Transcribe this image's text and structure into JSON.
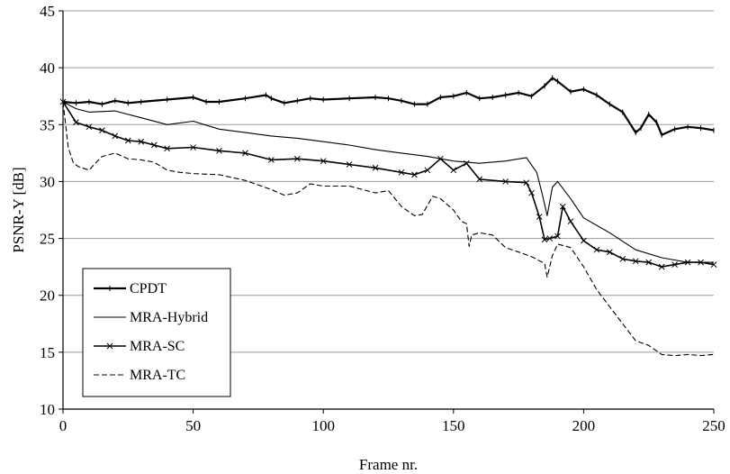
{
  "chart_data": {
    "type": "line",
    "title": "",
    "xlabel": "Frame nr.",
    "ylabel": "PSNR-Y [dB]",
    "xlim": [
      0,
      250
    ],
    "ylim": [
      10,
      45
    ],
    "xticks": [
      0,
      50,
      100,
      150,
      200,
      250
    ],
    "yticks": [
      10,
      15,
      20,
      25,
      30,
      35,
      40,
      45
    ],
    "grid": "horizontal",
    "legend_position": "bottom-left",
    "series": [
      {
        "name": "CPDT",
        "style": "solid-plus",
        "x": [
          0,
          5,
          10,
          15,
          20,
          25,
          30,
          40,
          50,
          55,
          60,
          70,
          78,
          80,
          85,
          90,
          95,
          100,
          110,
          120,
          125,
          130,
          135,
          140,
          145,
          150,
          155,
          160,
          165,
          170,
          175,
          180,
          185,
          188,
          190,
          195,
          200,
          205,
          210,
          215,
          220,
          222,
          225,
          228,
          230,
          235,
          240,
          245,
          250
        ],
        "y": [
          37.0,
          36.9,
          37.0,
          36.8,
          37.1,
          36.9,
          37.0,
          37.2,
          37.4,
          37.0,
          37.0,
          37.3,
          37.6,
          37.3,
          36.9,
          37.1,
          37.3,
          37.2,
          37.3,
          37.4,
          37.3,
          37.1,
          36.8,
          36.8,
          37.4,
          37.5,
          37.8,
          37.3,
          37.4,
          37.6,
          37.8,
          37.5,
          38.4,
          39.1,
          38.8,
          37.9,
          38.1,
          37.6,
          36.8,
          36.1,
          34.3,
          34.7,
          35.9,
          35.2,
          34.1,
          34.6,
          34.8,
          34.7,
          34.5
        ]
      },
      {
        "name": "MRA-Hybrid",
        "style": "solid",
        "x": [
          0,
          5,
          10,
          20,
          30,
          40,
          50,
          60,
          70,
          80,
          90,
          100,
          110,
          120,
          130,
          140,
          150,
          160,
          170,
          178,
          182,
          184,
          186,
          188,
          190,
          195,
          200,
          210,
          220,
          230,
          240,
          250
        ],
        "y": [
          37.0,
          36.4,
          36.1,
          36.2,
          35.6,
          35.0,
          35.3,
          34.6,
          34.3,
          34.0,
          33.8,
          33.5,
          33.2,
          32.8,
          32.5,
          32.2,
          31.8,
          31.6,
          31.8,
          32.1,
          30.8,
          29.0,
          27.0,
          29.5,
          30.0,
          28.5,
          26.8,
          25.5,
          24.0,
          23.3,
          22.9,
          22.9
        ]
      },
      {
        "name": "MRA-SC",
        "style": "solid-x",
        "x": [
          0,
          5,
          10,
          15,
          20,
          25,
          30,
          35,
          40,
          50,
          60,
          70,
          80,
          90,
          100,
          110,
          120,
          130,
          135,
          140,
          145,
          150,
          155,
          160,
          170,
          178,
          180,
          183,
          185,
          187,
          190,
          192,
          195,
          200,
          205,
          210,
          215,
          220,
          225,
          230,
          235,
          240,
          245,
          250
        ],
        "y": [
          37.0,
          35.2,
          34.8,
          34.5,
          34.0,
          33.6,
          33.5,
          33.2,
          32.9,
          33.0,
          32.7,
          32.5,
          31.9,
          32.0,
          31.8,
          31.5,
          31.2,
          30.8,
          30.6,
          31.0,
          32.0,
          31.0,
          31.6,
          30.2,
          30.0,
          29.9,
          29.0,
          26.9,
          24.9,
          25.0,
          25.2,
          27.8,
          26.5,
          24.8,
          24.0,
          23.8,
          23.2,
          23.0,
          22.9,
          22.5,
          22.7,
          22.9,
          22.9,
          22.7
        ]
      },
      {
        "name": "MRA-TC",
        "style": "dashed",
        "x": [
          0,
          2,
          4,
          6,
          10,
          12,
          15,
          20,
          25,
          30,
          35,
          40,
          45,
          50,
          60,
          70,
          80,
          85,
          90,
          95,
          100,
          110,
          120,
          125,
          130,
          135,
          138,
          142,
          145,
          150,
          153,
          155,
          156,
          157,
          160,
          165,
          170,
          175,
          180,
          185,
          186,
          188,
          190,
          195,
          200,
          205,
          210,
          215,
          220,
          225,
          230,
          235,
          240,
          245,
          250
        ],
        "y": [
          37.0,
          33.0,
          31.6,
          31.3,
          31.0,
          31.5,
          32.2,
          32.5,
          32.0,
          31.9,
          31.7,
          31.0,
          30.8,
          30.7,
          30.6,
          30.1,
          29.3,
          28.8,
          29.0,
          29.8,
          29.6,
          29.6,
          29.0,
          29.2,
          27.8,
          27.0,
          27.1,
          28.7,
          28.5,
          27.5,
          26.5,
          26.3,
          24.3,
          25.3,
          25.5,
          25.3,
          24.2,
          23.8,
          23.4,
          22.8,
          21.6,
          23.5,
          24.5,
          24.2,
          22.5,
          20.5,
          19.0,
          17.5,
          16.0,
          15.6,
          14.8,
          14.7,
          14.8,
          14.7,
          14.8
        ]
      }
    ]
  }
}
